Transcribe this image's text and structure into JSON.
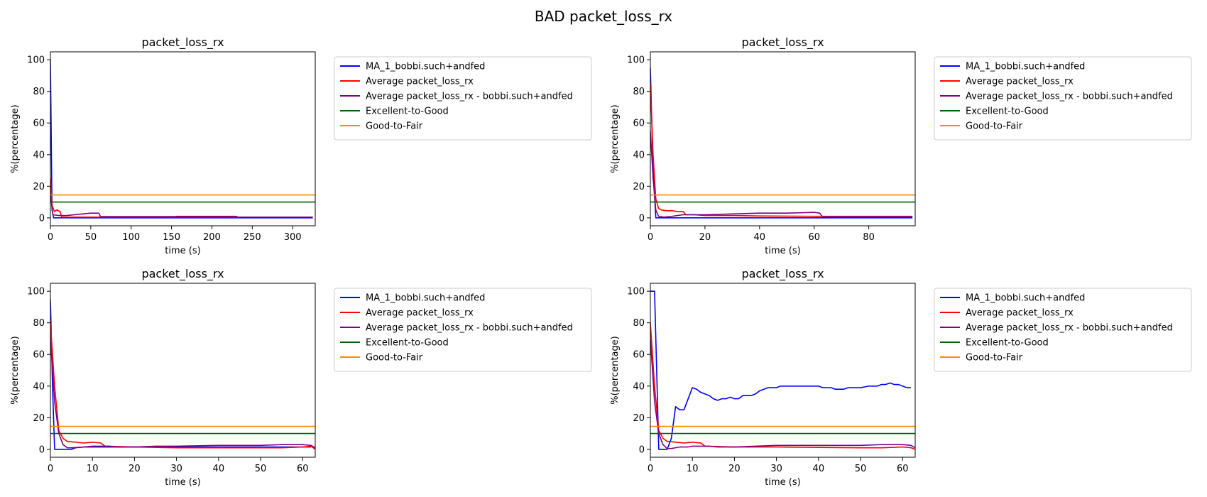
{
  "figure": {
    "title": "BAD packet_loss_rx"
  },
  "chart_data": [
    {
      "type": "line",
      "title": "packet_loss_rx",
      "xlabel": "time (s)",
      "ylabel": "%(percentage)",
      "xlim": [
        0,
        328
      ],
      "ylim": [
        -5,
        105
      ],
      "xticks": [
        0,
        50,
        100,
        150,
        200,
        250,
        300
      ],
      "yticks": [
        0,
        20,
        40,
        60,
        80,
        100
      ],
      "grid": false,
      "legend_placement": "outside-right",
      "series": [
        {
          "name": "MA_1_bobbi.such+andfed",
          "color": "#0000ff",
          "points": [
            [
              0,
              100
            ],
            [
              2,
              5
            ],
            [
              4,
              0
            ],
            [
              10,
              0
            ],
            [
              100,
              0
            ],
            [
              200,
              0
            ],
            [
              300,
              0
            ],
            [
              325,
              0
            ]
          ]
        },
        {
          "name": "Average packet_loss_rx",
          "color": "#ff0000",
          "points": [
            [
              0,
              25
            ],
            [
              2,
              8
            ],
            [
              5,
              4
            ],
            [
              8,
              5
            ],
            [
              12,
              4
            ],
            [
              14,
              0.5
            ],
            [
              50,
              0.5
            ],
            [
              100,
              0.5
            ],
            [
              150,
              0.5
            ],
            [
              200,
              0.5
            ],
            [
              250,
              0.5
            ],
            [
              300,
              0.5
            ],
            [
              325,
              0.5
            ]
          ]
        },
        {
          "name": "Average packet_loss_rx - bobbi.such+andfed",
          "color": "#800080",
          "points": [
            [
              0,
              15
            ],
            [
              3,
              2
            ],
            [
              10,
              1.5
            ],
            [
              20,
              1.5
            ],
            [
              30,
              2
            ],
            [
              40,
              2.5
            ],
            [
              50,
              3
            ],
            [
              60,
              3
            ],
            [
              62,
              0.8
            ],
            [
              100,
              0.8
            ],
            [
              155,
              0.8
            ],
            [
              156,
              1
            ],
            [
              230,
              1
            ],
            [
              232,
              0.5
            ],
            [
              280,
              0.5
            ],
            [
              325,
              0.5
            ]
          ]
        },
        {
          "name": "Excellent-to-Good",
          "color": "#006400",
          "points": [
            [
              0,
              10
            ],
            [
              328,
              10
            ]
          ]
        },
        {
          "name": "Good-to-Fair",
          "color": "#ff8c00",
          "points": [
            [
              0,
              14.5
            ],
            [
              328,
              14.5
            ]
          ]
        }
      ]
    },
    {
      "type": "line",
      "title": "packet_loss_rx",
      "xlabel": "time (s)",
      "ylabel": "%(percentage)",
      "xlim": [
        0,
        97
      ],
      "ylim": [
        -5,
        105
      ],
      "xticks": [
        0,
        20,
        40,
        60,
        80
      ],
      "yticks": [
        0,
        20,
        40,
        60,
        80,
        100
      ],
      "grid": false,
      "legend_placement": "outside-right",
      "series": [
        {
          "name": "MA_1_bobbi.such+andfed",
          "color": "#0000ff",
          "points": [
            [
              0,
              95
            ],
            [
              1,
              30
            ],
            [
              2,
              0
            ],
            [
              5,
              0
            ],
            [
              20,
              0
            ],
            [
              40,
              0
            ],
            [
              60,
              0
            ],
            [
              80,
              0
            ],
            [
              96,
              0
            ]
          ]
        },
        {
          "name": "Average packet_loss_rx",
          "color": "#ff0000",
          "points": [
            [
              0,
              85
            ],
            [
              1,
              40
            ],
            [
              2,
              12
            ],
            [
              3,
              6
            ],
            [
              4,
              5
            ],
            [
              6,
              4.5
            ],
            [
              8,
              4.5
            ],
            [
              10,
              4
            ],
            [
              12,
              4
            ],
            [
              13,
              2
            ],
            [
              16,
              2
            ],
            [
              20,
              1.5
            ],
            [
              30,
              1.5
            ],
            [
              40,
              1.2
            ],
            [
              60,
              1
            ],
            [
              80,
              1
            ],
            [
              96,
              1
            ]
          ]
        },
        {
          "name": "Average packet_loss_rx - bobbi.such+andfed",
          "color": "#800080",
          "points": [
            [
              0,
              55
            ],
            [
              1,
              25
            ],
            [
              2,
              5
            ],
            [
              3,
              1
            ],
            [
              5,
              0.5
            ],
            [
              8,
              1
            ],
            [
              10,
              1.5
            ],
            [
              12,
              2
            ],
            [
              20,
              2
            ],
            [
              30,
              2.5
            ],
            [
              40,
              3
            ],
            [
              50,
              3
            ],
            [
              60,
              3.5
            ],
            [
              62,
              3
            ],
            [
              63,
              0.8
            ],
            [
              80,
              0.8
            ],
            [
              96,
              0.8
            ]
          ]
        },
        {
          "name": "Excellent-to-Good",
          "color": "#006400",
          "points": [
            [
              0,
              10
            ],
            [
              97,
              10
            ]
          ]
        },
        {
          "name": "Good-to-Fair",
          "color": "#ff8c00",
          "points": [
            [
              0,
              14.5
            ],
            [
              97,
              14.5
            ]
          ]
        }
      ]
    },
    {
      "type": "line",
      "title": "packet_loss_rx",
      "xlabel": "time (s)",
      "ylabel": "%(percentage)",
      "xlim": [
        0,
        63
      ],
      "ylim": [
        -5,
        105
      ],
      "xticks": [
        0,
        10,
        20,
        30,
        40,
        50,
        60
      ],
      "yticks": [
        0,
        20,
        40,
        60,
        80,
        100
      ],
      "grid": false,
      "legend_placement": "outside-right",
      "series": [
        {
          "name": "MA_1_bobbi.such+andfed",
          "color": "#0000ff",
          "points": [
            [
              0,
              95
            ],
            [
              0.5,
              40
            ],
            [
              1,
              0
            ],
            [
              3,
              0
            ],
            [
              5,
              0
            ],
            [
              6,
              1
            ],
            [
              8,
              1.5
            ],
            [
              10,
              1.5
            ],
            [
              12,
              1.5
            ],
            [
              20,
              1.5
            ],
            [
              30,
              1.5
            ],
            [
              40,
              1.5
            ],
            [
              50,
              1.5
            ],
            [
              55,
              1.5
            ],
            [
              60,
              1.5
            ],
            [
              62,
              1.5
            ]
          ]
        },
        {
          "name": "Average packet_loss_rx",
          "color": "#ff0000",
          "points": [
            [
              0,
              80
            ],
            [
              1,
              40
            ],
            [
              2,
              12
            ],
            [
              3,
              7
            ],
            [
              4,
              5
            ],
            [
              6,
              4.5
            ],
            [
              8,
              4
            ],
            [
              10,
              4.5
            ],
            [
              12,
              4
            ],
            [
              13,
              2
            ],
            [
              20,
              1.5
            ],
            [
              30,
              1
            ],
            [
              40,
              1
            ],
            [
              50,
              1
            ],
            [
              55,
              1
            ],
            [
              60,
              1.5
            ],
            [
              62,
              2
            ],
            [
              63,
              0
            ]
          ]
        },
        {
          "name": "Average packet_loss_rx - bobbi.such+andfed",
          "color": "#800080",
          "points": [
            [
              0,
              70
            ],
            [
              1,
              30
            ],
            [
              2,
              10
            ],
            [
              3,
              3
            ],
            [
              4,
              1
            ],
            [
              5,
              1
            ],
            [
              8,
              1.5
            ],
            [
              10,
              2
            ],
            [
              14,
              2
            ],
            [
              16,
              1.5
            ],
            [
              20,
              1.5
            ],
            [
              25,
              2
            ],
            [
              30,
              2
            ],
            [
              40,
              2.5
            ],
            [
              50,
              2.5
            ],
            [
              55,
              3
            ],
            [
              60,
              3
            ],
            [
              62,
              2.5
            ],
            [
              63,
              1
            ]
          ]
        },
        {
          "name": "Excellent-to-Good",
          "color": "#006400",
          "points": [
            [
              0,
              10
            ],
            [
              63,
              10
            ]
          ]
        },
        {
          "name": "Good-to-Fair",
          "color": "#ff8c00",
          "points": [
            [
              0,
              14.5
            ],
            [
              63,
              14.5
            ]
          ]
        }
      ]
    },
    {
      "type": "line",
      "title": "packet_loss_rx",
      "xlabel": "time (s)",
      "ylabel": "%(percentage)",
      "xlim": [
        0,
        63
      ],
      "ylim": [
        -5,
        105
      ],
      "xticks": [
        0,
        10,
        20,
        30,
        40,
        50,
        60
      ],
      "yticks": [
        0,
        20,
        40,
        60,
        80,
        100
      ],
      "grid": false,
      "legend_placement": "outside-right",
      "series": [
        {
          "name": "MA_1_bobbi.such+andfed",
          "color": "#0000ff",
          "points": [
            [
              0,
              100
            ],
            [
              1,
              100
            ],
            [
              2,
              0
            ],
            [
              3,
              0
            ],
            [
              4,
              0
            ],
            [
              5,
              7
            ],
            [
              6,
              27
            ],
            [
              7,
              25
            ],
            [
              8,
              25
            ],
            [
              9,
              32
            ],
            [
              10,
              39
            ],
            [
              11,
              38
            ],
            [
              12,
              36
            ],
            [
              13,
              35
            ],
            [
              14,
              34
            ],
            [
              15,
              32
            ],
            [
              16,
              31
            ],
            [
              17,
              32
            ],
            [
              18,
              32
            ],
            [
              19,
              33
            ],
            [
              20,
              32
            ],
            [
              21,
              32
            ],
            [
              22,
              34
            ],
            [
              23,
              34
            ],
            [
              24,
              34
            ],
            [
              25,
              35
            ],
            [
              26,
              37
            ],
            [
              27,
              38
            ],
            [
              28,
              39
            ],
            [
              29,
              39
            ],
            [
              30,
              39
            ],
            [
              31,
              40
            ],
            [
              35,
              40
            ],
            [
              40,
              40
            ],
            [
              41,
              39
            ],
            [
              43,
              39
            ],
            [
              44,
              38
            ],
            [
              46,
              38
            ],
            [
              47,
              39
            ],
            [
              50,
              39
            ],
            [
              52,
              40
            ],
            [
              54,
              40
            ],
            [
              55,
              41
            ],
            [
              56,
              41
            ],
            [
              57,
              42
            ],
            [
              58,
              41
            ],
            [
              59,
              41
            ],
            [
              60,
              40
            ],
            [
              61,
              39
            ],
            [
              62,
              39
            ]
          ]
        },
        {
          "name": "Average packet_loss_rx",
          "color": "#ff0000",
          "points": [
            [
              0,
              80
            ],
            [
              1,
              40
            ],
            [
              2,
              12
            ],
            [
              3,
              7
            ],
            [
              4,
              5
            ],
            [
              6,
              4.5
            ],
            [
              8,
              4
            ],
            [
              10,
              4.5
            ],
            [
              12,
              4
            ],
            [
              13,
              2
            ],
            [
              20,
              1.5
            ],
            [
              30,
              1.5
            ],
            [
              40,
              1.2
            ],
            [
              50,
              1
            ],
            [
              55,
              1
            ],
            [
              60,
              1.5
            ],
            [
              62,
              1
            ],
            [
              63,
              0
            ]
          ]
        },
        {
          "name": "Average packet_loss_rx - bobbi.such+andfed",
          "color": "#800080",
          "points": [
            [
              0,
              70
            ],
            [
              1,
              30
            ],
            [
              2,
              10
            ],
            [
              3,
              3
            ],
            [
              4,
              0.5
            ],
            [
              5,
              0.5
            ],
            [
              7,
              1.5
            ],
            [
              9,
              1.5
            ],
            [
              10,
              2
            ],
            [
              14,
              2
            ],
            [
              16,
              1.5
            ],
            [
              20,
              1.5
            ],
            [
              25,
              2
            ],
            [
              30,
              2.5
            ],
            [
              40,
              2.5
            ],
            [
              50,
              2.5
            ],
            [
              55,
              3
            ],
            [
              60,
              3
            ],
            [
              62,
              2.5
            ],
            [
              63,
              1
            ]
          ]
        },
        {
          "name": "Excellent-to-Good",
          "color": "#006400",
          "points": [
            [
              0,
              10
            ],
            [
              63,
              10
            ]
          ]
        },
        {
          "name": "Good-to-Fair",
          "color": "#ff8c00",
          "points": [
            [
              0,
              14.5
            ],
            [
              63,
              14.5
            ]
          ]
        }
      ]
    }
  ]
}
